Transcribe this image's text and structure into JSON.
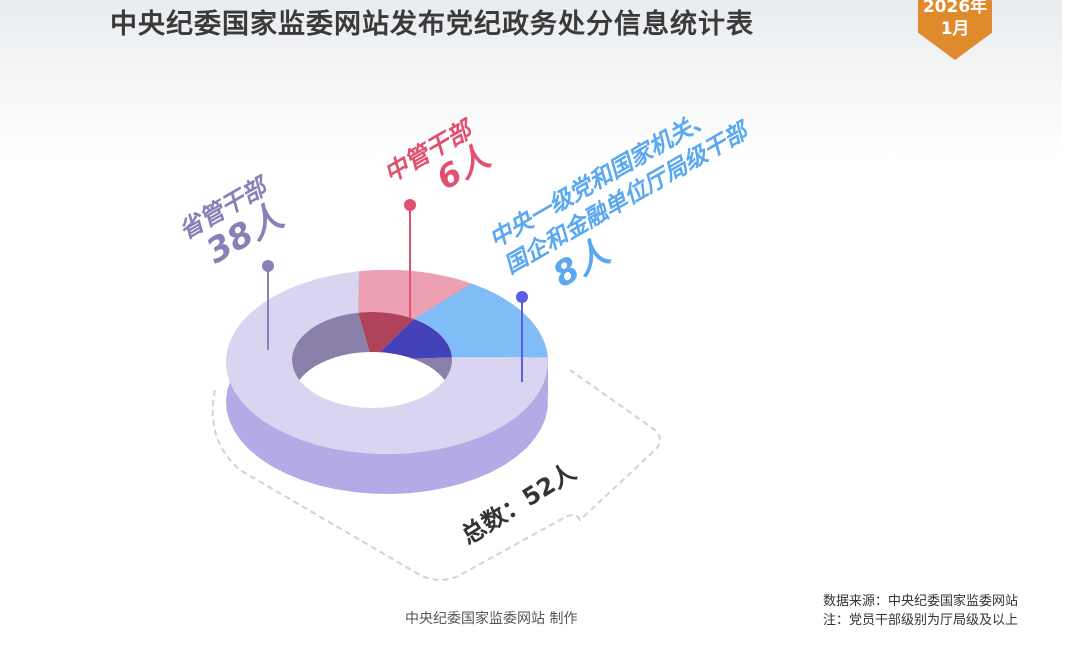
{
  "title": "中央纪委国家监委网站发布党纪政务处分信息统计表",
  "badge": {
    "year": "2026年",
    "month": "1月",
    "color": "#e08a2e"
  },
  "chart_data": {
    "type": "pie",
    "style": "3d-donut",
    "categories": [
      "中管干部",
      "中央一级党和国家机关、国企和金融单位厅局级干部",
      "省管干部"
    ],
    "values": [
      6,
      8,
      38
    ],
    "unit": "人",
    "labels": [
      {
        "name_lines": [
          "中管干部"
        ],
        "value": "6人"
      },
      {
        "name_lines": [
          "中央一级党和国家机关、",
          "国企和金融单位厅局级干部"
        ],
        "value": "8人"
      },
      {
        "name_lines": [
          "省管干部"
        ],
        "value": "38人"
      }
    ],
    "colors": {
      "top": [
        "#eea0b3",
        "#80bdf6",
        "#d9d5f1"
      ],
      "side": [
        "#d47890",
        "#5b5cea",
        "#b2abe6"
      ],
      "inner": [
        "#b0435c",
        "#4340b8",
        "#8a80aa"
      ],
      "text": [
        "#e0506f",
        "#5aa8f0",
        "#8a80b8"
      ]
    },
    "total": "总数：52人"
  },
  "footer": {
    "credit": "中央纪委国家监委网站 制作",
    "source": "数据来源：中央纪委国家监委网站",
    "note": "注：党员干部级别为厅局级及以上"
  }
}
